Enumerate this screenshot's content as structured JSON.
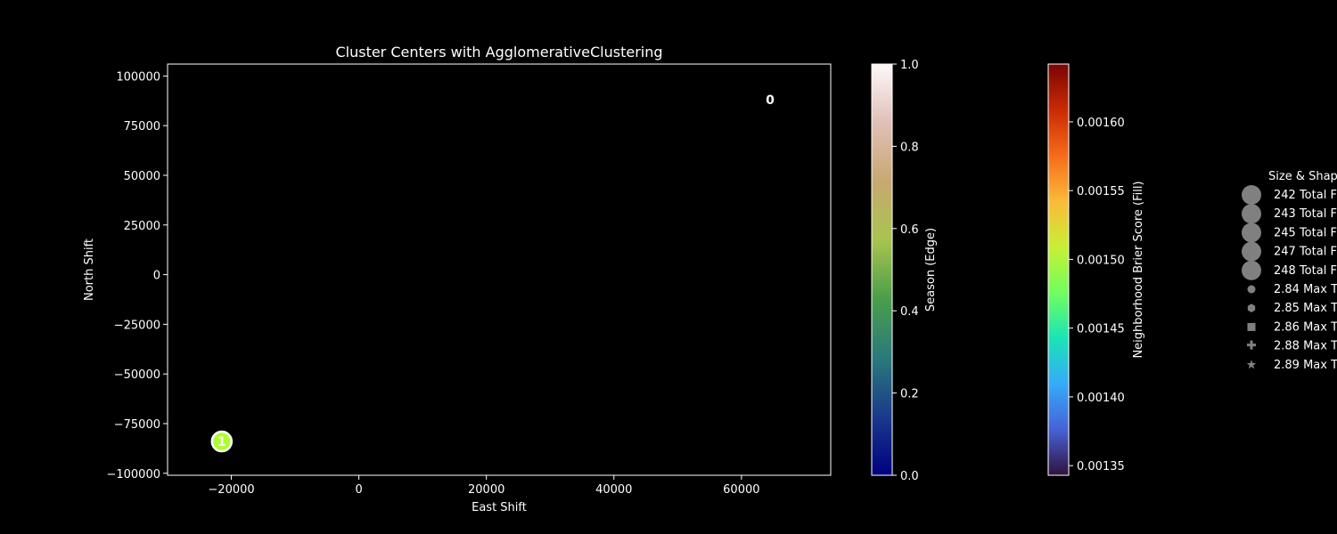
{
  "chart_data": {
    "type": "scatter",
    "title": "Cluster Centers with AgglomerativeClustering",
    "xlabel": "East Shift",
    "ylabel": "North Shift",
    "xlim": [
      -30000,
      74000
    ],
    "ylim": [
      -101000,
      106000
    ],
    "xticks": [
      -20000,
      0,
      20000,
      40000,
      60000
    ],
    "xtick_labels": [
      "−20000",
      "0",
      "20000",
      "40000",
      "60000"
    ],
    "yticks": [
      100000,
      75000,
      50000,
      25000,
      0,
      -25000,
      -50000,
      -75000,
      -100000
    ],
    "ytick_labels": [
      "100000",
      "75000",
      "50000",
      "25000",
      "0",
      "−25000",
      "−50000",
      "−75000",
      "−100000"
    ],
    "points": [
      {
        "label": "0",
        "x": 64500,
        "y": 88000,
        "fill": "#000000",
        "edge": "#000000"
      },
      {
        "label": "1",
        "x": -21500,
        "y": -84000,
        "fill": "#adff2f",
        "edge": "#ffffff"
      }
    ],
    "colorbars": [
      {
        "label": "Season (Edge)",
        "min": 0.0,
        "max": 1.0,
        "ticks": [
          "0.0",
          "0.2",
          "0.4",
          "0.6",
          "0.8",
          "1.0"
        ],
        "colors": [
          "#00007f",
          "#1a3a8c",
          "#2a7a7a",
          "#4a9e4a",
          "#a8c450",
          "#c8a870",
          "#e0c0b8",
          "#fff8f8"
        ]
      },
      {
        "label": "Neighborhood Brier Score (Fill)",
        "min": 0.001343,
        "max": 0.001642,
        "ticks": [
          "0.00135",
          "0.00140",
          "0.00145",
          "0.00150",
          "0.00155",
          "0.00160"
        ],
        "tick_values": [
          0.00135,
          0.0014,
          0.00145,
          0.0015,
          0.00155,
          0.0016
        ],
        "colors": [
          "#30123b",
          "#4662d7",
          "#36aaf9",
          "#1ae4b6",
          "#72fe5e",
          "#c8ef34",
          "#faba39",
          "#f66b19",
          "#ca2a04",
          "#7a0403"
        ]
      }
    ],
    "legend": {
      "placement": "right",
      "title": "Size & Shap",
      "entries": [
        {
          "label": "242 Total F",
          "marker": "circle-large"
        },
        {
          "label": "243 Total F",
          "marker": "circle-large"
        },
        {
          "label": "245 Total F",
          "marker": "circle-large"
        },
        {
          "label": "247 Total F",
          "marker": "circle-large"
        },
        {
          "label": "248 Total F",
          "marker": "circle-large"
        },
        {
          "label": "2.84 Max T",
          "marker": "circle-small"
        },
        {
          "label": "2.85 Max T",
          "marker": "hexagon-small"
        },
        {
          "label": "2.86 Max T",
          "marker": "square-small"
        },
        {
          "label": "2.88 Max T",
          "marker": "plus-small"
        },
        {
          "label": "2.89 Max T",
          "marker": "star-small"
        }
      ]
    }
  }
}
